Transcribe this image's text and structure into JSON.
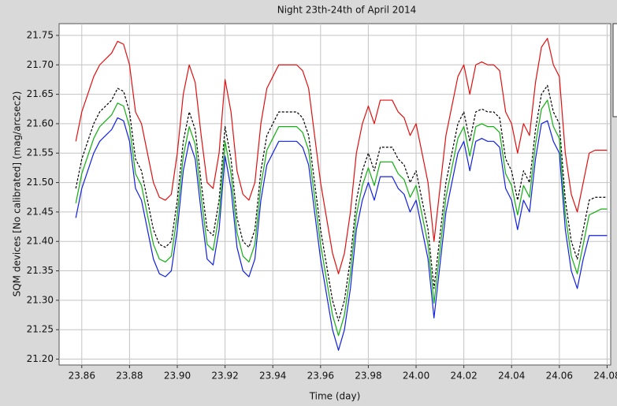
{
  "chart_data": {
    "type": "line",
    "title": "Night 23th-24th of April 2014",
    "x_label": "Time (day)",
    "y_label": "SQM devices [No calibrated]  (mag/arcsec2)",
    "grid": true,
    "xlim": [
      23.8505,
      24.0815
    ],
    "ylim": [
      21.19,
      21.77
    ],
    "xticks": [
      23.86,
      23.88,
      {
        "value": 23.9,
        "label": "23.90"
      },
      23.92,
      23.94,
      23.96,
      23.98,
      {
        "value": 24.0,
        "label": "24.00"
      },
      24.02,
      24.04,
      24.06,
      24.08
    ],
    "yticks": [
      {
        "value": 21.2,
        "label": "21.20"
      },
      21.25,
      {
        "value": 21.3,
        "label": "21.30"
      },
      21.35,
      {
        "value": 21.4,
        "label": "21.40"
      },
      21.45,
      {
        "value": 21.5,
        "label": "21.50"
      },
      21.55,
      {
        "value": 21.6,
        "label": "21.60"
      },
      21.65,
      {
        "value": 21.7,
        "label": "21.70"
      },
      21.75
    ],
    "x": [
      23.8575,
      23.86,
      23.8625,
      23.865,
      23.8675,
      23.87,
      23.8725,
      23.875,
      23.8775,
      23.88,
      23.8825,
      23.885,
      23.8875,
      23.89,
      23.8925,
      23.895,
      23.8975,
      23.9,
      23.9025,
      23.905,
      23.9075,
      23.91,
      23.9125,
      23.915,
      23.9175,
      23.92,
      23.9225,
      23.925,
      23.9275,
      23.93,
      23.9325,
      23.935,
      23.9375,
      23.94,
      23.9425,
      23.945,
      23.9475,
      23.95,
      23.9525,
      23.955,
      23.9575,
      23.96,
      23.9625,
      23.965,
      23.9675,
      23.97,
      23.9725,
      23.975,
      23.9775,
      23.98,
      23.9825,
      23.985,
      23.9875,
      23.99,
      23.9925,
      23.995,
      23.9975,
      24.0,
      24.0025,
      24.005,
      24.0075,
      24.01,
      24.0125,
      24.015,
      24.0175,
      24.02,
      24.0225,
      24.025,
      24.0275,
      24.03,
      24.0325,
      24.035,
      24.0375,
      24.04,
      24.0425,
      24.045,
      24.0475,
      24.05,
      24.0525,
      24.055,
      24.0575,
      24.06,
      24.0625,
      24.065,
      24.0675,
      24.07,
      24.0725,
      24.075,
      24.0775,
      24.08
    ],
    "series": [
      {
        "color": "#e01010",
        "dash": false,
        "values": [
          21.57,
          21.62,
          21.65,
          21.68,
          21.7,
          21.71,
          21.72,
          21.74,
          21.735,
          21.7,
          21.62,
          21.6,
          21.55,
          21.5,
          21.475,
          21.47,
          21.48,
          21.55,
          21.65,
          21.7,
          21.67,
          21.58,
          21.5,
          21.49,
          21.55,
          21.675,
          21.62,
          21.52,
          21.48,
          21.47,
          21.5,
          21.6,
          21.66,
          21.68,
          21.7,
          21.7,
          21.7,
          21.7,
          21.69,
          21.66,
          21.58,
          21.5,
          21.44,
          21.38,
          21.345,
          21.38,
          21.45,
          21.55,
          21.6,
          21.63,
          21.6,
          21.64,
          21.64,
          21.64,
          21.62,
          21.61,
          21.58,
          21.6,
          21.55,
          21.5,
          21.4,
          21.49,
          21.58,
          21.63,
          21.68,
          21.7,
          21.65,
          21.7,
          21.705,
          21.7,
          21.7,
          21.69,
          21.62,
          21.6,
          21.55,
          21.6,
          21.58,
          21.67,
          21.73,
          21.745,
          21.7,
          21.68,
          21.55,
          21.48,
          21.45,
          21.5,
          21.55,
          21.555,
          21.555,
          21.555
        ]
      },
      {
        "color": "#000000",
        "dash": true,
        "values": [
          21.49,
          21.54,
          21.57,
          21.6,
          21.62,
          21.63,
          21.64,
          21.66,
          21.655,
          21.62,
          21.54,
          21.52,
          21.47,
          21.42,
          21.395,
          21.39,
          21.4,
          21.47,
          21.57,
          21.62,
          21.59,
          21.5,
          21.42,
          21.41,
          21.47,
          21.595,
          21.54,
          21.44,
          21.4,
          21.39,
          21.42,
          21.52,
          21.58,
          21.6,
          21.62,
          21.62,
          21.62,
          21.62,
          21.61,
          21.58,
          21.5,
          21.42,
          21.36,
          21.3,
          21.265,
          21.3,
          21.37,
          21.47,
          21.52,
          21.55,
          21.52,
          21.56,
          21.56,
          21.56,
          21.54,
          21.53,
          21.5,
          21.52,
          21.47,
          21.42,
          21.32,
          21.41,
          21.5,
          21.55,
          21.6,
          21.62,
          21.57,
          21.62,
          21.625,
          21.62,
          21.62,
          21.61,
          21.54,
          21.52,
          21.47,
          21.52,
          21.5,
          21.59,
          21.65,
          21.665,
          21.62,
          21.6,
          21.47,
          21.4,
          21.37,
          21.42,
          21.47,
          21.475,
          21.475,
          21.475
        ]
      },
      {
        "color": "#10b010",
        "dash": false,
        "values": [
          21.465,
          21.515,
          21.545,
          21.575,
          21.595,
          21.605,
          21.615,
          21.635,
          21.63,
          21.595,
          21.515,
          21.495,
          21.445,
          21.395,
          21.37,
          21.365,
          21.375,
          21.445,
          21.545,
          21.595,
          21.565,
          21.475,
          21.395,
          21.385,
          21.445,
          21.57,
          21.515,
          21.415,
          21.375,
          21.365,
          21.395,
          21.495,
          21.555,
          21.575,
          21.595,
          21.595,
          21.595,
          21.595,
          21.585,
          21.555,
          21.475,
          21.395,
          21.335,
          21.275,
          21.24,
          21.275,
          21.345,
          21.445,
          21.495,
          21.525,
          21.495,
          21.535,
          21.535,
          21.535,
          21.515,
          21.505,
          21.475,
          21.495,
          21.445,
          21.395,
          21.295,
          21.385,
          21.475,
          21.525,
          21.575,
          21.595,
          21.545,
          21.595,
          21.6,
          21.595,
          21.595,
          21.585,
          21.515,
          21.495,
          21.445,
          21.495,
          21.475,
          21.565,
          21.625,
          21.64,
          21.595,
          21.575,
          21.445,
          21.375,
          21.345,
          21.395,
          21.445,
          21.45,
          21.455,
          21.455
        ]
      },
      {
        "color": "#1020e0",
        "dash": false,
        "values": [
          21.44,
          21.49,
          21.52,
          21.55,
          21.57,
          21.58,
          21.59,
          21.61,
          21.605,
          21.57,
          21.49,
          21.47,
          21.42,
          21.37,
          21.345,
          21.34,
          21.35,
          21.42,
          21.52,
          21.57,
          21.54,
          21.45,
          21.37,
          21.36,
          21.42,
          21.545,
          21.49,
          21.39,
          21.35,
          21.34,
          21.37,
          21.47,
          21.53,
          21.55,
          21.57,
          21.57,
          21.57,
          21.57,
          21.56,
          21.53,
          21.45,
          21.37,
          21.31,
          21.25,
          21.215,
          21.25,
          21.32,
          21.42,
          21.47,
          21.5,
          21.47,
          21.51,
          21.51,
          21.51,
          21.49,
          21.48,
          21.45,
          21.47,
          21.42,
          21.37,
          21.27,
          21.36,
          21.45,
          21.5,
          21.55,
          21.57,
          21.52,
          21.57,
          21.575,
          21.57,
          21.57,
          21.56,
          21.49,
          21.47,
          21.42,
          21.47,
          21.45,
          21.54,
          21.6,
          21.605,
          21.57,
          21.55,
          21.42,
          21.35,
          21.32,
          21.37,
          21.41,
          21.41,
          21.41,
          21.41
        ]
      }
    ]
  }
}
